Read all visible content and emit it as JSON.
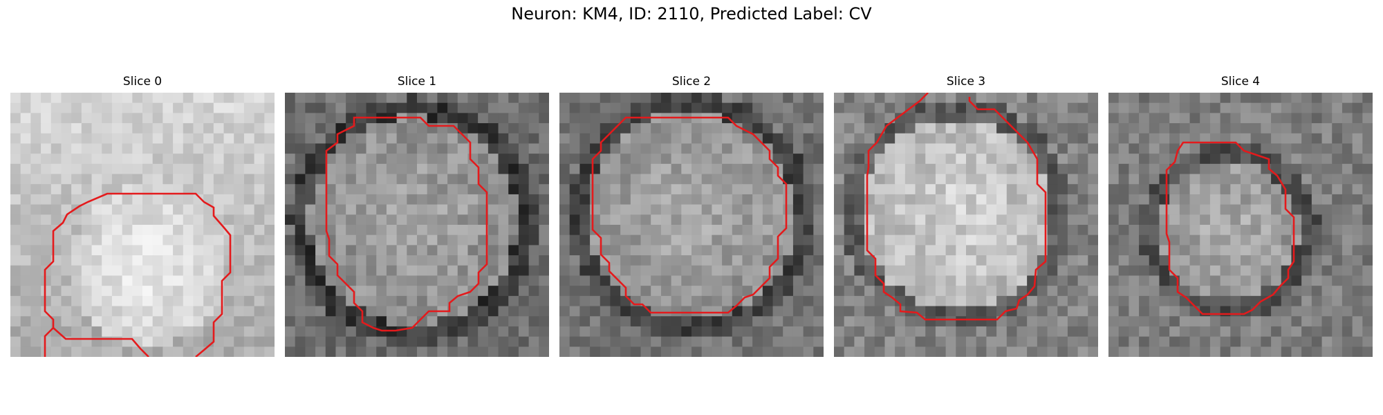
{
  "figure": {
    "title": "Neuron: KM4, ID: 2110, Predicted Label: CV"
  },
  "colors": {
    "contour": "#e41a1c",
    "background": "#ffffff"
  },
  "slices": [
    {
      "title": "Slice 0"
    },
    {
      "title": "Slice 1"
    },
    {
      "title": "Slice 2"
    },
    {
      "title": "Slice 3"
    },
    {
      "title": "Slice 4"
    }
  ]
}
